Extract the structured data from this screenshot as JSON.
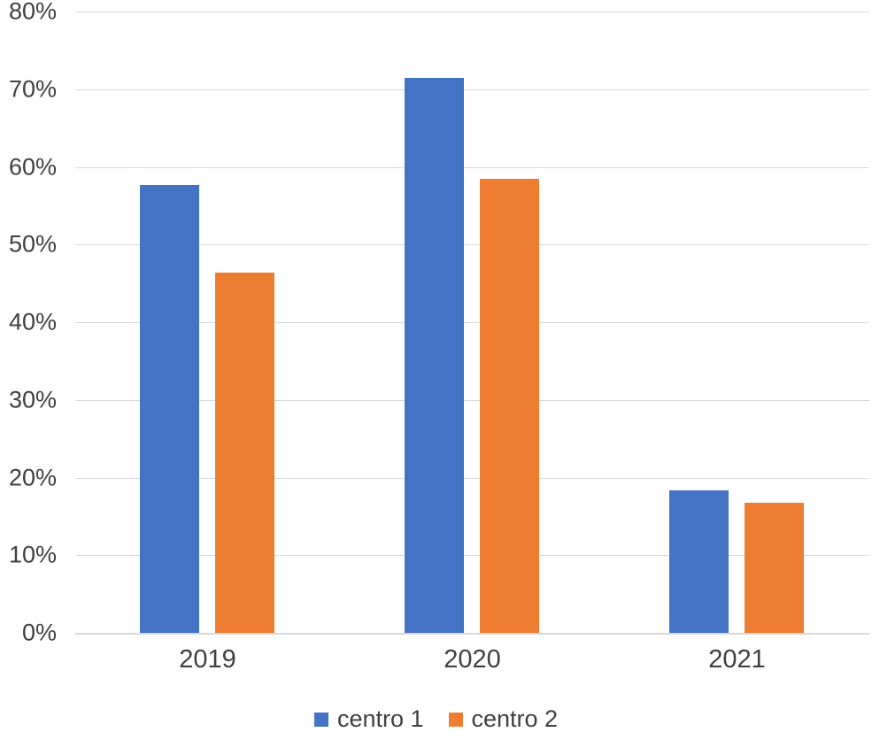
{
  "chart_data": {
    "type": "bar",
    "title": "",
    "categories": [
      "2019",
      "2020",
      "2021"
    ],
    "series": [
      {
        "name": "centro 1",
        "color": "#4472C4",
        "values": [
          57.7,
          71.4,
          18.3
        ]
      },
      {
        "name": "centro 2",
        "color": "#ED7D31",
        "values": [
          46.4,
          58.5,
          16.8
        ]
      }
    ],
    "ylim": [
      0,
      80
    ],
    "ytick_step": 10,
    "ytick_labels": [
      "0%",
      "10%",
      "20%",
      "30%",
      "40%",
      "50%",
      "60%",
      "70%",
      "80%"
    ],
    "grid": true,
    "legend_position": "bottom",
    "colors": {
      "background": "#FFFFFF",
      "gridline": "#D9D9D9",
      "axis_line": "#D9D9D9",
      "text": "#404040"
    }
  }
}
